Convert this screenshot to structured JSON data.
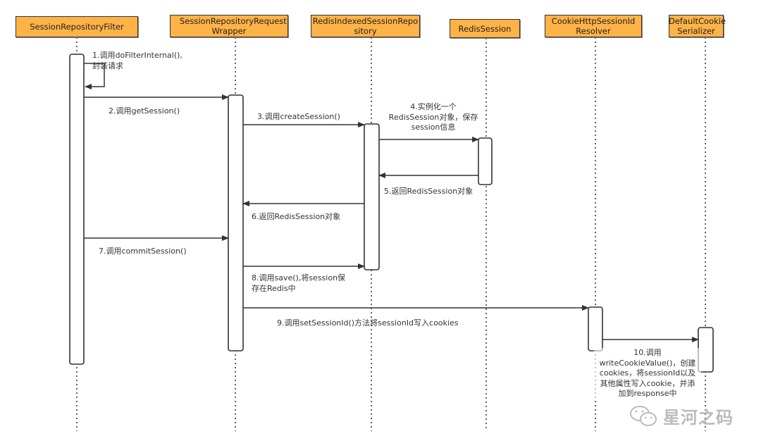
{
  "participants": [
    {
      "label": "SessionRepositoryFilter"
    },
    {
      "label": "SessionRepositoryRequest Wrapper"
    },
    {
      "label": "RedisIndexedSessionRepo sitory"
    },
    {
      "label": "RedisSession"
    },
    {
      "label": "CookieHttpSessionId Resolver"
    },
    {
      "label": "DefaultCookie Serializer"
    }
  ],
  "messages": [
    {
      "label": "1.调用doFilterInternal(),\n封装请求",
      "from": "SessionRepositoryFilter",
      "to": "SessionRepositoryFilter"
    },
    {
      "label": "2.调用getSession()",
      "from": "SessionRepositoryFilter",
      "to": "SessionRepositoryRequest Wrapper"
    },
    {
      "label": "3.调用createSession()",
      "from": "SessionRepositoryRequest Wrapper",
      "to": "RedisIndexedSessionRepo sitory"
    },
    {
      "label": "4.实例化一个\nRedisSession对象，保存\nsession信息",
      "from": "RedisIndexedSessionRepo sitory",
      "to": "RedisSession"
    },
    {
      "label": "5.返回RedisSession对象",
      "from": "RedisSession",
      "to": "RedisIndexedSessionRepo sitory"
    },
    {
      "label": "6.返回RedisSession对象",
      "from": "RedisIndexedSessionRepo sitory",
      "to": "SessionRepositoryRequest Wrapper"
    },
    {
      "label": "7.调用commitSession()",
      "from": "SessionRepositoryFilter",
      "to": "SessionRepositoryRequest Wrapper"
    },
    {
      "label": "8.调用save(),将session保\n存在Redis中",
      "from": "SessionRepositoryRequest Wrapper",
      "to": "RedisIndexedSessionRepo sitory"
    },
    {
      "label": "9.调用setSessionId()方法将sessionId写入cookies",
      "from": "SessionRepositoryRequest Wrapper",
      "to": "CookieHttpSessionId Resolver"
    },
    {
      "label": "10.调用\nwriteCookieValue()，创建\ncookies，将sessionId以及\n其他属性写入cookie，并添\n加到response中",
      "from": "CookieHttpSessionId Resolver",
      "to": "DefaultCookie Serializer"
    }
  ],
  "watermark": {
    "text": "星河之码",
    "icon": "wechat-icon"
  },
  "colors": {
    "header_fill": "#FFB347",
    "line": "#333333"
  }
}
